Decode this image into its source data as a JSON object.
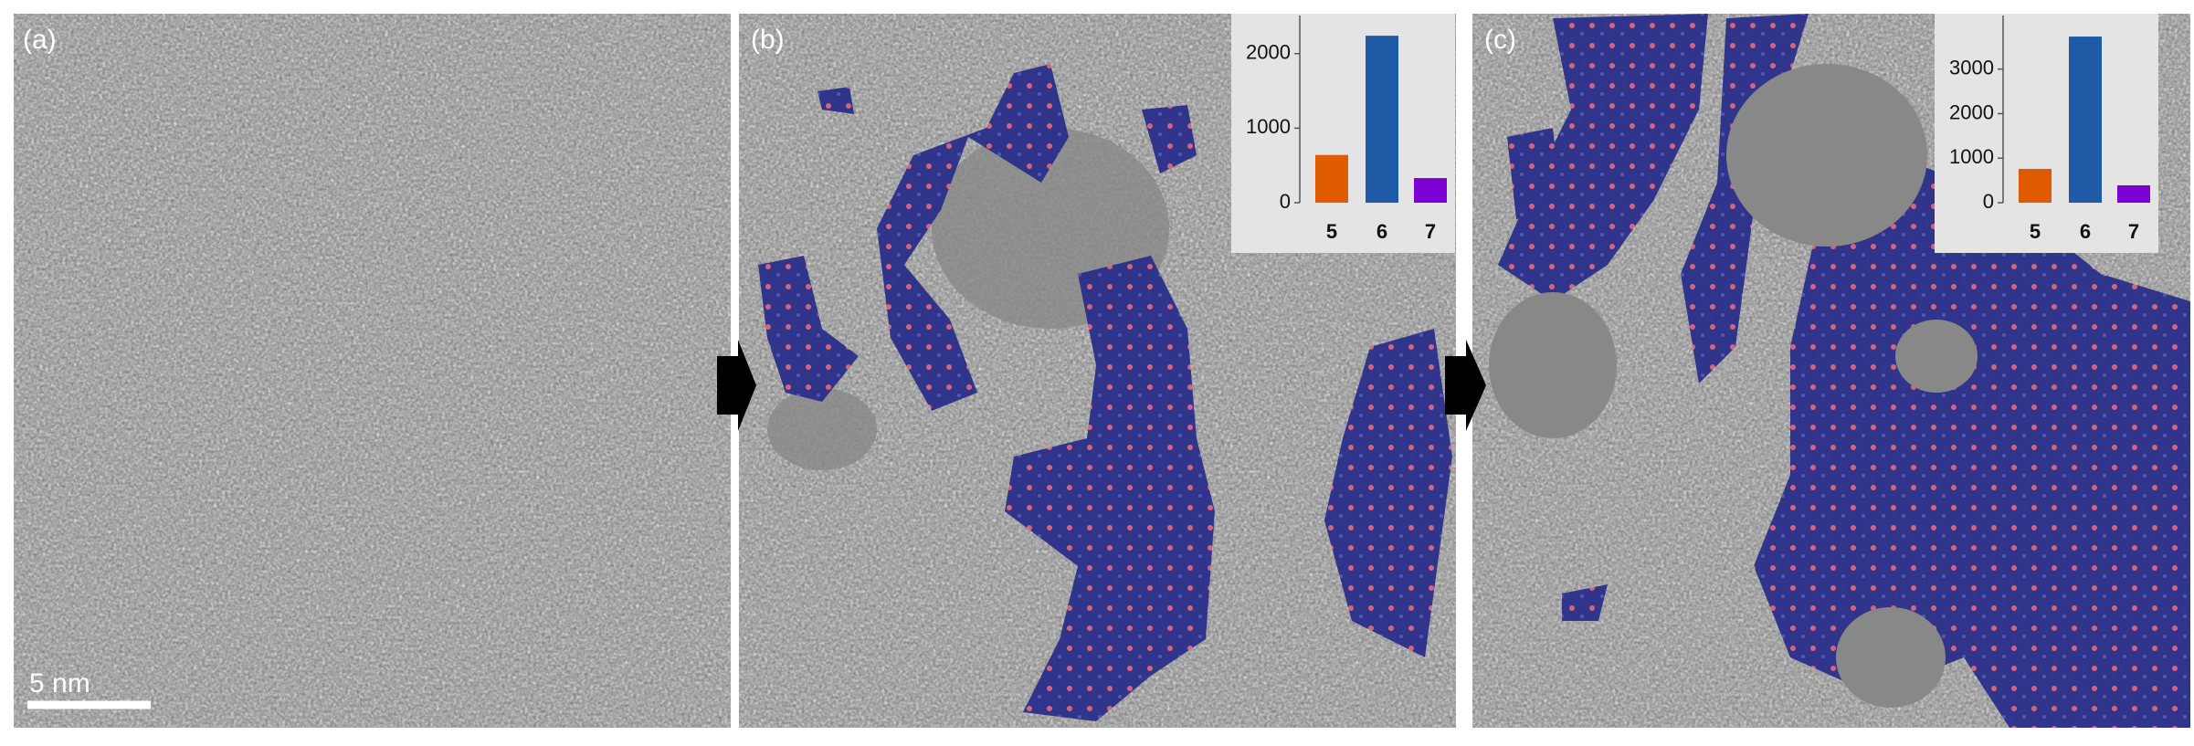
{
  "panels": [
    {
      "label": "(a)",
      "scale_bar": "5 nm"
    },
    {
      "label": "(b)"
    },
    {
      "label": "(c)"
    }
  ],
  "chart_data": [
    {
      "type": "bar",
      "categories": [
        "5",
        "6",
        "7"
      ],
      "values": [
        640,
        2240,
        330
      ],
      "colors": [
        "#e05a00",
        "#1f5aa6",
        "#7d00d6"
      ],
      "ylim": [
        0,
        2450
      ],
      "yticks": [
        0,
        1000,
        2000
      ]
    },
    {
      "type": "bar",
      "categories": [
        "5",
        "6",
        "7"
      ],
      "values": [
        760,
        3730,
        390
      ],
      "colors": [
        "#e05a00",
        "#1f5aa6",
        "#7d00d6"
      ],
      "ylim": [
        0,
        4100
      ],
      "yticks": [
        0,
        1000,
        2000,
        3000
      ]
    }
  ]
}
